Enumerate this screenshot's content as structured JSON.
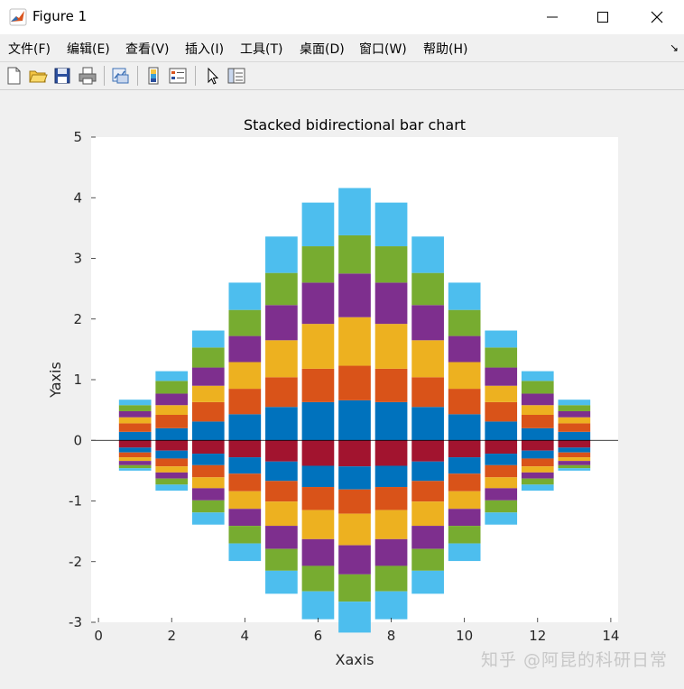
{
  "window": {
    "title": "Figure 1",
    "minimize_icon": "minimize-icon",
    "maximize_icon": "maximize-icon",
    "close_icon": "close-icon"
  },
  "menu": {
    "items": [
      "文件(F)",
      "编辑(E)",
      "查看(V)",
      "插入(I)",
      "工具(T)",
      "桌面(D)",
      "窗口(W)",
      "帮助(H)"
    ]
  },
  "toolbar": {
    "icons": [
      "new-figure-icon",
      "open-file-icon",
      "save-icon",
      "print-icon",
      "link-plot-icon",
      "colorbar-icon",
      "legend-icon",
      "pointer-icon",
      "property-editor-icon"
    ]
  },
  "watermark": "知乎 @阿昆的科研日常",
  "chart_data": {
    "type": "bar",
    "stacked": true,
    "bidirectional": true,
    "title": "Stacked bidirectional bar chart",
    "xlabel": "Xaxis",
    "ylabel": "Yaxis",
    "xlim": [
      -0.2,
      14.2
    ],
    "ylim": [
      -3,
      5
    ],
    "xticks": [
      0,
      2,
      4,
      6,
      8,
      10,
      12,
      14
    ],
    "yticks": [
      -3,
      -2,
      -1,
      0,
      1,
      2,
      3,
      4,
      5
    ],
    "grid": false,
    "x": [
      1,
      2,
      3,
      4,
      5,
      6,
      7,
      8,
      9,
      10,
      11,
      12,
      13
    ],
    "colors": [
      "#0072BD",
      "#D95319",
      "#EDB120",
      "#7E2F8E",
      "#77AC30",
      "#4DBEEE",
      "#A2142F"
    ],
    "positive_series": [
      {
        "values": [
          0.14,
          0.2,
          0.31,
          0.43,
          0.55,
          0.63,
          0.66,
          0.63,
          0.55,
          0.43,
          0.31,
          0.2,
          0.14
        ]
      },
      {
        "values": [
          0.14,
          0.22,
          0.32,
          0.42,
          0.49,
          0.55,
          0.57,
          0.55,
          0.49,
          0.42,
          0.32,
          0.22,
          0.14
        ]
      },
      {
        "values": [
          0.1,
          0.16,
          0.27,
          0.44,
          0.61,
          0.74,
          0.8,
          0.74,
          0.61,
          0.44,
          0.27,
          0.16,
          0.1
        ]
      },
      {
        "values": [
          0.1,
          0.19,
          0.3,
          0.43,
          0.58,
          0.68,
          0.72,
          0.68,
          0.58,
          0.43,
          0.3,
          0.19,
          0.1
        ]
      },
      {
        "values": [
          0.1,
          0.21,
          0.33,
          0.43,
          0.53,
          0.6,
          0.63,
          0.6,
          0.53,
          0.43,
          0.33,
          0.21,
          0.1
        ]
      },
      {
        "values": [
          0.09,
          0.16,
          0.28,
          0.45,
          0.6,
          0.72,
          0.78,
          0.72,
          0.6,
          0.45,
          0.28,
          0.16,
          0.09
        ]
      }
    ],
    "negative_series": [
      {
        "values": [
          -0.12,
          -0.17,
          -0.22,
          -0.28,
          -0.35,
          -0.42,
          -0.43,
          -0.42,
          -0.35,
          -0.28,
          -0.22,
          -0.17,
          -0.12
        ]
      },
      {
        "values": [
          -0.08,
          -0.13,
          -0.19,
          -0.27,
          -0.32,
          -0.35,
          -0.38,
          -0.35,
          -0.32,
          -0.27,
          -0.19,
          -0.13,
          -0.08
        ]
      },
      {
        "values": [
          -0.08,
          -0.13,
          -0.2,
          -0.29,
          -0.34,
          -0.38,
          -0.4,
          -0.38,
          -0.34,
          -0.29,
          -0.2,
          -0.13,
          -0.08
        ]
      },
      {
        "values": [
          -0.06,
          -0.1,
          -0.18,
          -0.29,
          -0.4,
          -0.48,
          -0.52,
          -0.48,
          -0.4,
          -0.29,
          -0.18,
          -0.1,
          -0.06
        ]
      },
      {
        "values": [
          -0.07,
          -0.1,
          -0.2,
          -0.28,
          -0.38,
          -0.44,
          -0.48,
          -0.44,
          -0.38,
          -0.28,
          -0.2,
          -0.1,
          -0.07
        ]
      },
      {
        "values": [
          -0.05,
          -0.1,
          -0.2,
          -0.29,
          -0.36,
          -0.42,
          -0.45,
          -0.42,
          -0.36,
          -0.29,
          -0.2,
          -0.1,
          -0.05
        ]
      },
      {
        "values": [
          -0.04,
          -0.1,
          -0.2,
          -0.29,
          -0.38,
          -0.46,
          -0.51,
          -0.46,
          -0.38,
          -0.29,
          -0.2,
          -0.1,
          -0.04
        ]
      }
    ],
    "positive_color_order": [
      0,
      1,
      2,
      3,
      4,
      5
    ],
    "negative_color_order": [
      6,
      0,
      1,
      2,
      3,
      4,
      5
    ]
  }
}
